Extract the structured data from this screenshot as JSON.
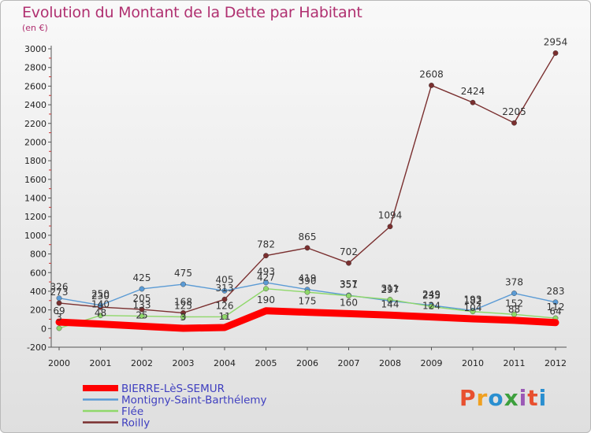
{
  "header": {
    "title": "Evolution du Montant de la Dette par Habitant",
    "subtitle": "(en €)"
  },
  "logo": {
    "text": "Proxiti",
    "colors": [
      "#e8502f",
      "#f0a020",
      "#2a8fd0",
      "#3da03d",
      "#9b59b6",
      "#e8502f",
      "#2a8fd0"
    ]
  },
  "chart_data": {
    "type": "line",
    "title": "Evolution du Montant de la Dette par Habitant",
    "ylabel": "(en €)",
    "x": [
      "2000",
      "2001",
      "2002",
      "2003",
      "2004",
      "2005",
      "2006",
      "2007",
      "2008",
      "2009",
      "2010",
      "2011",
      "2012"
    ],
    "yticks": [
      -200,
      0,
      200,
      400,
      600,
      800,
      1000,
      1200,
      1400,
      1600,
      1800,
      2000,
      2200,
      2400,
      2600,
      2800,
      3000
    ],
    "ylim": [
      -200,
      3000
    ],
    "grid": false,
    "legend_position": "bottom-left",
    "series": [
      {
        "name": "BIERRE-LèS-SEMUR",
        "color": "#ff0000",
        "values": [
          69,
          48,
          25,
          3,
          11,
          190,
          175,
          160,
          144,
          124,
          104,
          88,
          64
        ],
        "labels": [
          "69",
          "48",
          "25",
          "3",
          "11",
          "190",
          "175",
          "160",
          "144",
          "124",
          "104",
          "88",
          "64"
        ]
      },
      {
        "name": "Montigny-Saint-Barthélemy",
        "color": "#5b9bd5",
        "values": [
          326,
          250,
          425,
          475,
          405,
          493,
          419,
          357,
          297,
          249,
          193,
          378,
          283
        ],
        "labels": [
          "326",
          "250",
          "425",
          "475",
          "405",
          "493",
          "419",
          "357",
          "297",
          "249",
          "193",
          "378",
          "283"
        ]
      },
      {
        "name": "Flée",
        "color": "#8fd86a",
        "values": [
          3,
          140,
          133,
          125,
          126,
          427,
          390,
          351,
          311,
          235,
          182,
          152,
          112
        ],
        "labels": [
          "3",
          "140",
          "133",
          "125",
          "126",
          "427",
          "390",
          "351",
          "311",
          "235",
          "182",
          "152",
          "112"
        ]
      },
      {
        "name": "Roilly",
        "color": "#7a2f2f",
        "values": [
          273,
          230,
          205,
          168,
          313,
          782,
          865,
          702,
          1094,
          2608,
          2424,
          2205,
          2954
        ],
        "labels": [
          "273",
          "230",
          "205",
          "168",
          "313",
          "782",
          "865",
          "702",
          "1094",
          "2608",
          "2424",
          "2205",
          "2954"
        ]
      }
    ]
  }
}
